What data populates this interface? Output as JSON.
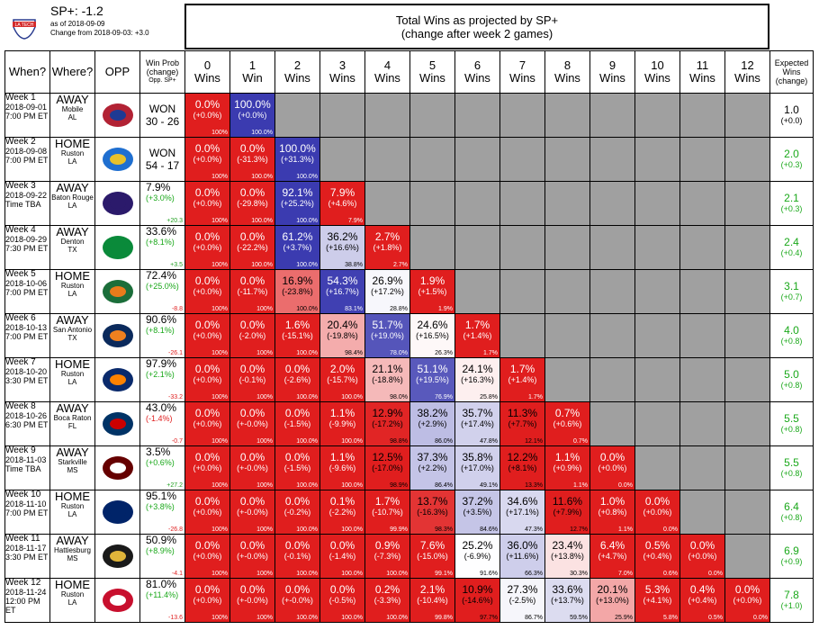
{
  "header": {
    "sp_label": "SP+: -1.2",
    "as_of": "as of 2018-09-09",
    "change_from": "Change from 2018-09-03: +3.0",
    "title_line1": "Total Wins as projected by SP+",
    "title_line2": "(change after week 2 games)",
    "logo_text": "LA TECH"
  },
  "columns": {
    "when": "When?",
    "where": "Where?",
    "opp": "OPP",
    "winprob": [
      "Win Prob",
      "(change)",
      "Opp. SP+"
    ],
    "expected": [
      "Expected",
      "Wins",
      "(change)"
    ],
    "wins": [
      [
        "0",
        "Wins"
      ],
      [
        "1",
        "Win"
      ],
      [
        "2",
        "Wins"
      ],
      [
        "3",
        "Wins"
      ],
      [
        "4",
        "Wins"
      ],
      [
        "5",
        "Wins"
      ],
      [
        "6",
        "Wins"
      ],
      [
        "7",
        "Wins"
      ],
      [
        "8",
        "Wins"
      ],
      [
        "9",
        "Wins"
      ],
      [
        "10",
        "Wins"
      ],
      [
        "11",
        "Wins"
      ],
      [
        "12",
        "Wins"
      ]
    ]
  },
  "colors": {
    "red_strong": "#e01e1e",
    "red_light": "#f2c8c8",
    "white": "#ffffff",
    "blue_light": "#d6d6ee",
    "blue_strong": "#3b3bb0",
    "blank": "#a0a0a0",
    "positive": "#1aa81a",
    "negative": "#e02020"
  },
  "chart_data": {
    "type": "table",
    "title": "Total Wins as projected by SP+",
    "subtitle": "(change after week 2 games)",
    "rows": [
      {
        "week": "Week 1",
        "date": "2018-09-01",
        "time": "7:00 PM ET",
        "loc": "AWAY",
        "city": "Mobile",
        "state": "AL",
        "opp_icon": "south-alabama-logo",
        "result": "WON",
        "score": "30 - 26",
        "winprob": null,
        "wp_change": null,
        "opp_sp": "",
        "cells": [
          [
            "0.0%",
            "(+0.0%)",
            "100%"
          ],
          [
            "100.0%",
            "(+0.0%)",
            "100.0%"
          ]
        ],
        "expected": "1.0",
        "exp_change": "(+0.0)"
      },
      {
        "week": "Week 2",
        "date": "2018-09-08",
        "time": "7:00 PM ET",
        "loc": "HOME",
        "city": "Ruston",
        "state": "LA",
        "opp_icon": "southern-logo",
        "result": "WON",
        "score": "54 - 17",
        "winprob": null,
        "wp_change": null,
        "opp_sp": "",
        "cells": [
          [
            "0.0%",
            "(+0.0%)",
            "100%"
          ],
          [
            "0.0%",
            "(-31.3%)",
            "100.0%"
          ],
          [
            "100.0%",
            "(+31.3%)",
            "100.0%"
          ]
        ],
        "expected": "2.0",
        "exp_change": "(+0.3)"
      },
      {
        "week": "Week 3",
        "date": "2018-09-22",
        "time": "Time TBA",
        "loc": "AWAY",
        "city": "Baton Rouge",
        "state": "LA",
        "opp_icon": "lsu-logo",
        "result": null,
        "score": null,
        "winprob": "7.9%",
        "wp_change": "(+3.0%)",
        "opp_sp": "+20.3",
        "cells": [
          [
            "0.0%",
            "(+0.0%)",
            "100%"
          ],
          [
            "0.0%",
            "(-29.8%)",
            "100.0%"
          ],
          [
            "92.1%",
            "(+25.2%)",
            "100.0%"
          ],
          [
            "7.9%",
            "(+4.6%)",
            "7.9%"
          ]
        ],
        "expected": "2.1",
        "exp_change": "(+0.3)"
      },
      {
        "week": "Week 4",
        "date": "2018-09-29",
        "time": "7:30 PM ET",
        "loc": "AWAY",
        "city": "Denton",
        "state": "TX",
        "opp_icon": "north-texas-logo",
        "result": null,
        "score": null,
        "winprob": "33.6%",
        "wp_change": "(+8.1%)",
        "opp_sp": "+3.5",
        "cells": [
          [
            "0.0%",
            "(+0.0%)",
            "100%"
          ],
          [
            "0.0%",
            "(-22.2%)",
            "100.0%"
          ],
          [
            "61.2%",
            "(+3.7%)",
            "100.0%"
          ],
          [
            "36.2%",
            "(+16.6%)",
            "38.8%"
          ],
          [
            "2.7%",
            "(+1.8%)",
            "2.7%"
          ]
        ],
        "expected": "2.4",
        "exp_change": "(+0.4)"
      },
      {
        "week": "Week 5",
        "date": "2018-10-06",
        "time": "7:00 PM ET",
        "loc": "HOME",
        "city": "Ruston",
        "state": "LA",
        "opp_icon": "uab-logo",
        "result": null,
        "score": null,
        "winprob": "72.4%",
        "wp_change": "(+25.0%)",
        "opp_sp": "-8.8",
        "cells": [
          [
            "0.0%",
            "(+0.0%)",
            "100%"
          ],
          [
            "0.0%",
            "(-11.7%)",
            "100%"
          ],
          [
            "16.9%",
            "(-23.8%)",
            "100.0%"
          ],
          [
            "54.3%",
            "(+16.7%)",
            "83.1%"
          ],
          [
            "26.9%",
            "(+17.2%)",
            "28.8%"
          ],
          [
            "1.9%",
            "(+1.5%)",
            "1.9%"
          ]
        ],
        "expected": "3.1",
        "exp_change": "(+0.7)"
      },
      {
        "week": "Week 6",
        "date": "2018-10-13",
        "time": "7:00 PM ET",
        "loc": "AWAY",
        "city": "San Antonio",
        "state": "TX",
        "opp_icon": "utsa-logo",
        "result": null,
        "score": null,
        "winprob": "90.6%",
        "wp_change": "(+8.1%)",
        "opp_sp": "-26.1",
        "cells": [
          [
            "0.0%",
            "(+0.0%)",
            "100%"
          ],
          [
            "0.0%",
            "(-2.0%)",
            "100%"
          ],
          [
            "1.6%",
            "(-15.1%)",
            "100.0%"
          ],
          [
            "20.4%",
            "(-19.8%)",
            "98.4%"
          ],
          [
            "51.7%",
            "(+19.0%)",
            "78.0%"
          ],
          [
            "24.6%",
            "(+16.5%)",
            "26.3%"
          ],
          [
            "1.7%",
            "(+1.4%)",
            "1.7%"
          ]
        ],
        "expected": "4.0",
        "exp_change": "(+0.8)"
      },
      {
        "week": "Week 7",
        "date": "2018-10-20",
        "time": "3:30 PM ET",
        "loc": "HOME",
        "city": "Ruston",
        "state": "LA",
        "opp_icon": "utep-logo",
        "result": null,
        "score": null,
        "winprob": "97.9%",
        "wp_change": "(+2.1%)",
        "opp_sp": "-33.2",
        "cells": [
          [
            "0.0%",
            "(+0.0%)",
            "100%"
          ],
          [
            "0.0%",
            "(-0.1%)",
            "100%"
          ],
          [
            "0.0%",
            "(-2.6%)",
            "100.0%"
          ],
          [
            "2.0%",
            "(-15.7%)",
            "100.0%"
          ],
          [
            "21.1%",
            "(-18.8%)",
            "98.0%"
          ],
          [
            "51.1%",
            "(+19.5%)",
            "76.9%"
          ],
          [
            "24.1%",
            "(+16.3%)",
            "25.8%"
          ],
          [
            "1.7%",
            "(+1.4%)",
            "1.7%"
          ]
        ],
        "expected": "5.0",
        "exp_change": "(+0.8)"
      },
      {
        "week": "Week 8",
        "date": "2018-10-26",
        "time": "6:30 PM ET",
        "loc": "AWAY",
        "city": "Boca Raton",
        "state": "FL",
        "opp_icon": "fau-logo",
        "result": null,
        "score": null,
        "winprob": "43.0%",
        "wp_change": "(-1.4%)",
        "opp_sp": "-0.7",
        "cells": [
          [
            "0.0%",
            "(+0.0%)",
            "100%"
          ],
          [
            "0.0%",
            "(+-0.0%)",
            "100%"
          ],
          [
            "0.0%",
            "(-1.5%)",
            "100.0%"
          ],
          [
            "1.1%",
            "(-9.9%)",
            "100.0%"
          ],
          [
            "12.9%",
            "(-17.2%)",
            "98.8%"
          ],
          [
            "38.2%",
            "(+2.9%)",
            "86.0%"
          ],
          [
            "35.7%",
            "(+17.4%)",
            "47.8%"
          ],
          [
            "11.3%",
            "(+7.7%)",
            "12.1%"
          ],
          [
            "0.7%",
            "(+0.6%)",
            "0.7%"
          ]
        ],
        "expected": "5.5",
        "exp_change": "(+0.8)"
      },
      {
        "week": "Week 9",
        "date": "2018-11-03",
        "time": "Time TBA",
        "loc": "AWAY",
        "city": "Starkville",
        "state": "MS",
        "opp_icon": "mississippi-state-logo",
        "result": null,
        "score": null,
        "winprob": "3.5%",
        "wp_change": "(+0.6%)",
        "opp_sp": "+27.2",
        "cells": [
          [
            "0.0%",
            "(+0.0%)",
            "100%"
          ],
          [
            "0.0%",
            "(+-0.0%)",
            "100%"
          ],
          [
            "0.0%",
            "(-1.5%)",
            "100.0%"
          ],
          [
            "1.1%",
            "(-9.6%)",
            "100.0%"
          ],
          [
            "12.5%",
            "(-17.0%)",
            "98.9%"
          ],
          [
            "37.3%",
            "(+2.2%)",
            "86.4%"
          ],
          [
            "35.8%",
            "(+17.0%)",
            "49.1%"
          ],
          [
            "12.2%",
            "(+8.1%)",
            "13.3%"
          ],
          [
            "1.1%",
            "(+0.9%)",
            "1.1%"
          ],
          [
            "0.0%",
            "(+0.0%)",
            "0.0%"
          ]
        ],
        "expected": "5.5",
        "exp_change": "(+0.8)"
      },
      {
        "week": "Week 10",
        "date": "2018-11-10",
        "time": "7:00 PM ET",
        "loc": "HOME",
        "city": "Ruston",
        "state": "LA",
        "opp_icon": "rice-logo",
        "result": null,
        "score": null,
        "winprob": "95.1%",
        "wp_change": "(+3.8%)",
        "opp_sp": "-26.8",
        "cells": [
          [
            "0.0%",
            "(+0.0%)",
            "100%"
          ],
          [
            "0.0%",
            "(+-0.0%)",
            "100%"
          ],
          [
            "0.0%",
            "(-0.2%)",
            "100.0%"
          ],
          [
            "0.1%",
            "(-2.2%)",
            "100.0%"
          ],
          [
            "1.7%",
            "(-10.7%)",
            "99.9%"
          ],
          [
            "13.7%",
            "(-16.3%)",
            "98.3%"
          ],
          [
            "37.2%",
            "(+3.5%)",
            "84.6%"
          ],
          [
            "34.6%",
            "(+17.1%)",
            "47.3%"
          ],
          [
            "11.6%",
            "(+7.9%)",
            "12.7%"
          ],
          [
            "1.0%",
            "(+0.8%)",
            "1.1%"
          ],
          [
            "0.0%",
            "(+0.0%)",
            "0.0%"
          ]
        ],
        "expected": "6.4",
        "exp_change": "(+0.8)"
      },
      {
        "week": "Week 11",
        "date": "2018-11-17",
        "time": "3:30 PM ET",
        "loc": "AWAY",
        "city": "Hattiesburg",
        "state": "MS",
        "opp_icon": "southern-miss-logo",
        "result": null,
        "score": null,
        "winprob": "50.9%",
        "wp_change": "(+8.9%)",
        "opp_sp": "-4.1",
        "cells": [
          [
            "0.0%",
            "(+0.0%)",
            "100%"
          ],
          [
            "0.0%",
            "(+-0.0%)",
            "100%"
          ],
          [
            "0.0%",
            "(-0.1%)",
            "100.0%"
          ],
          [
            "0.0%",
            "(-1.4%)",
            "100.0%"
          ],
          [
            "0.9%",
            "(-7.3%)",
            "100.0%"
          ],
          [
            "7.6%",
            "(-15.0%)",
            "99.1%"
          ],
          [
            "25.2%",
            "(-6.9%)",
            "91.6%"
          ],
          [
            "36.0%",
            "(+11.6%)",
            "66.3%"
          ],
          [
            "23.4%",
            "(+13.8%)",
            "30.3%"
          ],
          [
            "6.4%",
            "(+4.7%)",
            "7.0%"
          ],
          [
            "0.5%",
            "(+0.4%)",
            "0.6%"
          ],
          [
            "0.0%",
            "(+0.0%)",
            "0.0%"
          ]
        ],
        "expected": "6.9",
        "exp_change": "(+0.9)"
      },
      {
        "week": "Week 12",
        "date": "2018-11-24",
        "time": "12:00 PM ET",
        "loc": "HOME",
        "city": "Ruston",
        "state": "LA",
        "opp_icon": "wku-logo",
        "result": null,
        "score": null,
        "winprob": "81.0%",
        "wp_change": "(+11.4%)",
        "opp_sp": "-13.6",
        "cells": [
          [
            "0.0%",
            "(+0.0%)",
            "100%"
          ],
          [
            "0.0%",
            "(+-0.0%)",
            "100%"
          ],
          [
            "0.0%",
            "(+-0.0%)",
            "100.0%"
          ],
          [
            "0.0%",
            "(-0.5%)",
            "100.0%"
          ],
          [
            "0.2%",
            "(-3.3%)",
            "100.0%"
          ],
          [
            "2.1%",
            "(-10.4%)",
            "99.8%"
          ],
          [
            "10.9%",
            "(-14.6%)",
            "97.7%"
          ],
          [
            "27.3%",
            "(-2.5%)",
            "86.7%"
          ],
          [
            "33.6%",
            "(+13.7%)",
            "59.5%"
          ],
          [
            "20.1%",
            "(+13.0%)",
            "25.9%"
          ],
          [
            "5.3%",
            "(+4.1%)",
            "5.8%"
          ],
          [
            "0.4%",
            "(+0.4%)",
            "0.5%"
          ],
          [
            "0.0%",
            "(+0.0%)",
            "0.0%"
          ]
        ],
        "expected": "7.8",
        "exp_change": "(+1.0)"
      }
    ]
  }
}
